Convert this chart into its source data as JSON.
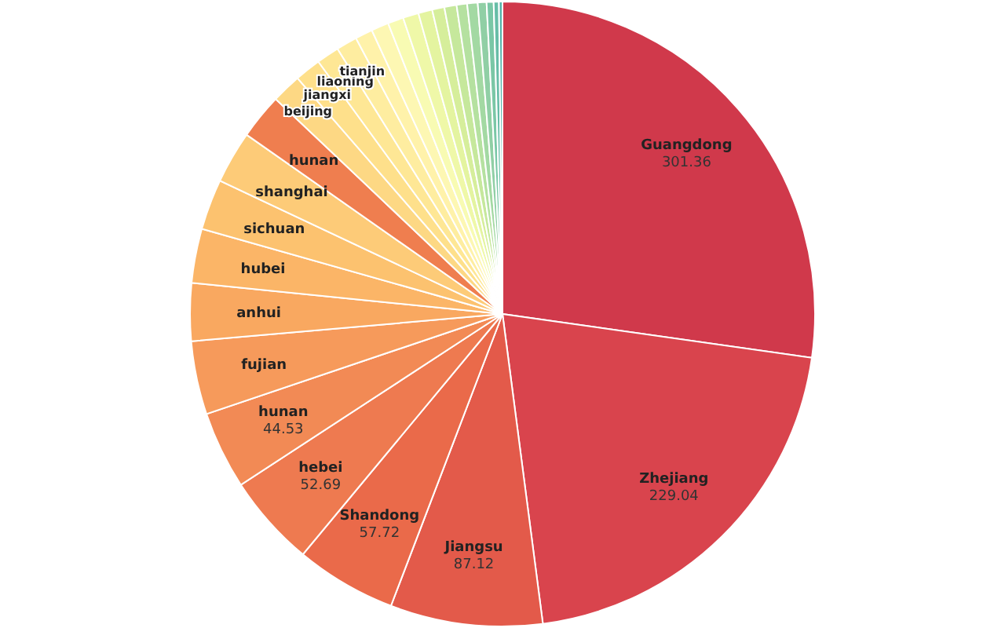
{
  "chart_data": {
    "type": "pie",
    "categories": [
      "Guangdong",
      "Zhejiang",
      "Jiangsu",
      "Shandong",
      "hebei",
      "hunan",
      "fujian",
      "anhui",
      "hubei",
      "sichuan",
      "shanghai",
      "hunan",
      "beijing",
      "jiangxi",
      "liaoning",
      "tianjin",
      null,
      null,
      null,
      null,
      null,
      null,
      null,
      null,
      null,
      null,
      null,
      null,
      null
    ],
    "values": [
      301.36,
      229.04,
      87.12,
      57.72,
      52.69,
      44.53,
      42,
      33,
      31,
      29,
      30,
      26,
      17,
      15,
      13,
      12,
      10,
      10,
      9,
      9,
      8,
      7,
      7,
      6,
      6,
      5,
      4,
      3,
      2
    ],
    "value_labels": [
      "301.36",
      "229.04",
      "87.12",
      "57.72",
      "52.69",
      "44.53",
      null,
      null,
      null,
      null,
      null,
      null,
      null,
      null,
      null,
      null,
      null,
      null,
      null,
      null,
      null,
      null,
      null,
      null,
      null,
      null,
      null,
      null,
      null
    ],
    "colors": [
      "#d0394b",
      "#d9444d",
      "#e35a4a",
      "#ea6a4a",
      "#ee7a50",
      "#f28a55",
      "#f69a5b",
      "#f9a860",
      "#fbb567",
      "#fcc26f",
      "#fdcb78",
      "#ef7e4f",
      "#fdd884",
      "#fee08b",
      "#fee795",
      "#feeda0",
      "#fff2aa",
      "#fdf7b3",
      "#f8fbb3",
      "#eff8a8",
      "#e4f4a0",
      "#d6ee9b",
      "#c6e89c",
      "#b5e1a0",
      "#a3d9a3",
      "#90cfa5",
      "#7ac7a6",
      "#66bda7",
      "#52b3a8"
    ]
  }
}
